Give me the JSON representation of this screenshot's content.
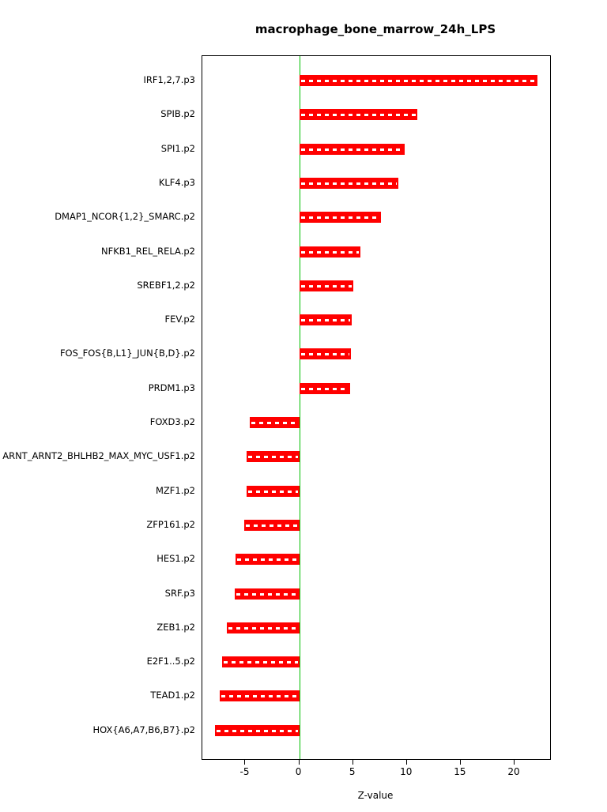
{
  "chart_data": {
    "type": "bar",
    "orientation": "horizontal",
    "title": "macrophage_bone_marrow_24h_LPS",
    "xlabel": "Z-value",
    "categories": [
      "IRF1,2,7.p3",
      "SPIB.p2",
      "SPI1.p2",
      "KLF4.p3",
      "DMAP1_NCOR{1,2}_SMARC.p2",
      "NFKB1_REL_RELA.p2",
      "SREBF1,2.p2",
      "FEV.p2",
      "FOS_FOS{B,L1}_JUN{B,D}.p2",
      "PRDM1.p3",
      "FOXD3.p2",
      "ARNT_ARNT2_BHLHB2_MAX_MYC_USF1.p2",
      "MZF1.p2",
      "ZFP161.p2",
      "HES1.p2",
      "SRF.p3",
      "ZEB1.p2",
      "E2F1..5.p2",
      "TEAD1.p2",
      "HOX{A6,A7,B6,B7}.p2"
    ],
    "values": [
      22.1,
      11.0,
      9.8,
      9.2,
      7.6,
      5.7,
      5.0,
      4.9,
      4.8,
      4.7,
      -4.6,
      -4.9,
      -4.9,
      -5.1,
      -5.9,
      -6.0,
      -6.7,
      -7.2,
      -7.4,
      -7.8
    ],
    "xticks": [
      -5,
      0,
      5,
      10,
      15,
      20
    ],
    "xlim": [
      -9,
      23.3
    ],
    "bar_color": "#ff0000",
    "zero_line_color": "#00c000",
    "plot_border_color": "#000000",
    "grid": false,
    "legend": "none"
  }
}
